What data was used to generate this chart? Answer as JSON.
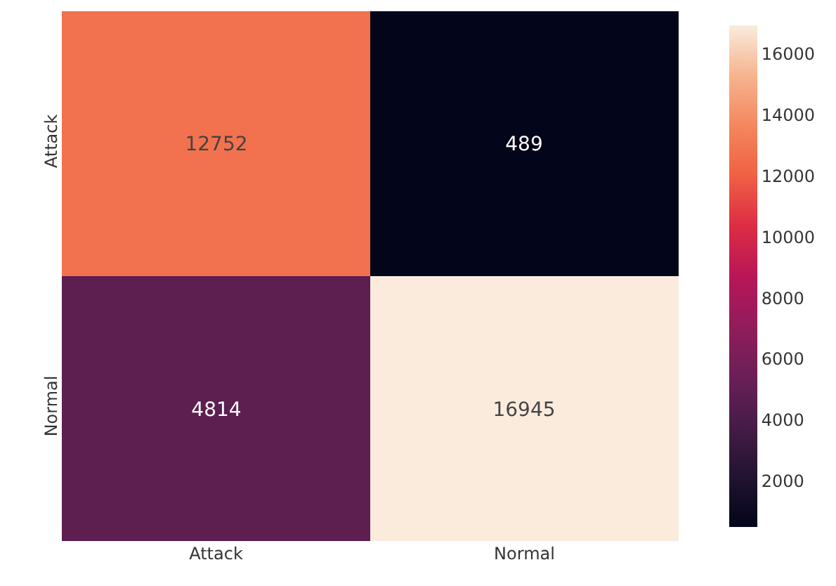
{
  "chart_data": {
    "type": "heatmap",
    "categories": [
      "Attack",
      "Normal"
    ],
    "y_categories": [
      "Attack",
      "Normal"
    ],
    "cells": [
      [
        12752,
        489
      ],
      [
        4814,
        16945
      ]
    ],
    "data_labels": true,
    "clim": [
      489,
      16945
    ],
    "cticks": [
      2000,
      4000,
      6000,
      8000,
      10000,
      12000,
      14000,
      16000
    ]
  }
}
